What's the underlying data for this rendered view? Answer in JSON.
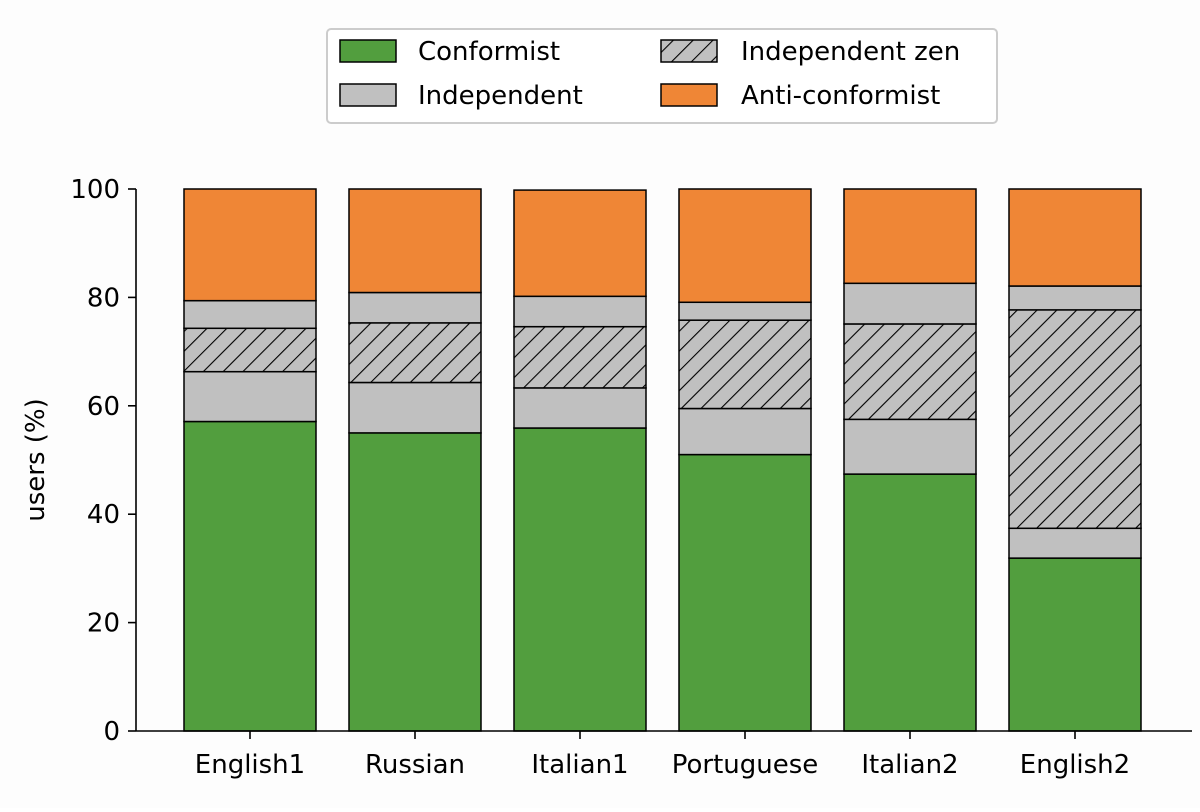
{
  "chart_data": {
    "type": "bar",
    "stacked": true,
    "categories": [
      "English1",
      "Russian",
      "Italian1",
      "Portuguese",
      "Italian2",
      "English2"
    ],
    "series": [
      {
        "name": "Conformist",
        "color": "#529e3e",
        "hatch": false,
        "values": [
          57.1,
          55.0,
          55.9,
          51.0,
          47.4,
          31.9
        ]
      },
      {
        "name": "Independent",
        "color": "#c0c0c0",
        "hatch": false,
        "values": [
          9.2,
          9.3,
          7.4,
          8.5,
          10.1,
          5.5
        ]
      },
      {
        "name": "Independent zen",
        "color": "#c0c0c0",
        "hatch": true,
        "values": [
          8.0,
          11.0,
          11.3,
          16.3,
          17.6,
          40.3
        ]
      },
      {
        "name": "Independent",
        "color": "#c0c0c0",
        "hatch": false,
        "values": [
          5.1,
          5.6,
          5.6,
          3.3,
          7.5,
          4.4
        ]
      },
      {
        "name": "Anti-conformist",
        "color": "#ef8636",
        "hatch": false,
        "values": [
          20.6,
          19.1,
          19.6,
          20.9,
          17.4,
          17.9
        ]
      }
    ],
    "legend": {
      "placement": "top-center",
      "entries": [
        {
          "label": "Conformist",
          "color": "#529e3e",
          "hatch": false
        },
        {
          "label": "Independent",
          "color": "#c0c0c0",
          "hatch": false
        },
        {
          "label": "Independent zen",
          "color": "#c0c0c0",
          "hatch": true
        },
        {
          "label": "Anti-conformist",
          "color": "#ef8636",
          "hatch": false
        }
      ]
    },
    "title": "",
    "xlabel": "",
    "ylabel": "users (%)",
    "ylim": [
      0,
      100
    ],
    "yticks": [
      "0",
      "20",
      "40",
      "60",
      "80",
      "100"
    ],
    "grid": false
  }
}
